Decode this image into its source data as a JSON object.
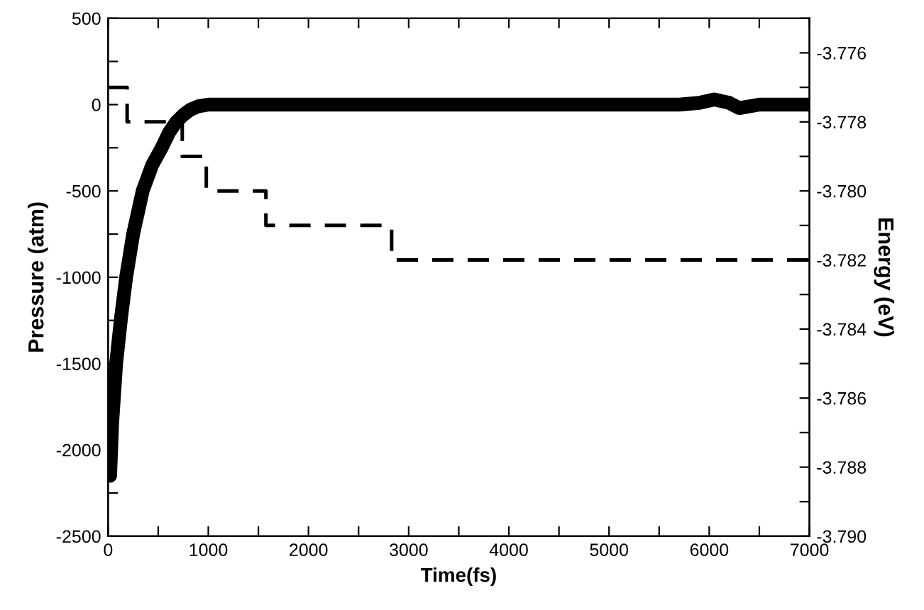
{
  "chart_data": {
    "type": "line",
    "xlabel": "Time(fs)",
    "ylabel": "Pressure (atm)",
    "y2label": "Energy (eV)",
    "xlim": [
      0,
      7000
    ],
    "ylim": [
      -2500,
      500
    ],
    "y2lim": [
      -3.79,
      -3.775
    ],
    "xticks": [
      0,
      {
        "value": 500,
        "label": null
      },
      1000,
      {
        "value": 1500,
        "label": null
      },
      2000,
      {
        "value": 2500,
        "label": null
      },
      3000,
      {
        "value": 3500,
        "label": null
      },
      4000,
      {
        "value": 4500,
        "label": null
      },
      5000,
      {
        "value": 5500,
        "label": null
      },
      6000,
      {
        "value": 6500,
        "label": null
      },
      7000
    ],
    "yticks": [
      -2500,
      {
        "value": -2250,
        "label": null
      },
      -2000,
      {
        "value": -1750,
        "label": null
      },
      -1500,
      {
        "value": -1250,
        "label": null
      },
      -1000,
      {
        "value": -750,
        "label": null
      },
      -500,
      {
        "value": -250,
        "label": null
      },
      0,
      {
        "value": 250,
        "label": null
      },
      500
    ],
    "y2ticks": [
      {
        "value": -3.79,
        "label": "-3.790"
      },
      {
        "value": -3.789,
        "label": null
      },
      {
        "value": -3.788,
        "label": "-3.788"
      },
      {
        "value": -3.787,
        "label": null
      },
      {
        "value": -3.786,
        "label": "-3.786"
      },
      {
        "value": -3.785,
        "label": null
      },
      {
        "value": -3.784,
        "label": "-3.784"
      },
      {
        "value": -3.783,
        "label": null
      },
      {
        "value": -3.782,
        "label": "-3.782"
      },
      {
        "value": -3.781,
        "label": null
      },
      {
        "value": -3.78,
        "label": "-3.780"
      },
      {
        "value": -3.779,
        "label": null
      },
      {
        "value": -3.778,
        "label": "-3.778"
      },
      {
        "value": -3.777,
        "label": null
      },
      {
        "value": -3.776,
        "label": "-3.776"
      },
      {
        "value": -3.775,
        "label": null
      }
    ],
    "grid": false,
    "marker": "none",
    "series": [
      {
        "color": "#000000",
        "line_style": "solid",
        "x": [
          20,
          40,
          80,
          130,
          180,
          250,
          345,
          440,
          535,
          610,
          680,
          750,
          820,
          900,
          1000,
          1500,
          2000,
          3000,
          4000,
          5000,
          5700,
          5900,
          6050,
          6200,
          6300,
          6500,
          7000
        ],
        "values": [
          -2150,
          -1850,
          -1500,
          -1230,
          -1000,
          -750,
          -500,
          -350,
          -250,
          -160,
          -100,
          -60,
          -30,
          -10,
          0,
          0,
          0,
          0,
          0,
          0,
          0,
          10,
          30,
          10,
          -20,
          0,
          0
        ]
      },
      {
        "type": "step",
        "axis": "y2",
        "color": "#000000",
        "line_style": "dashed",
        "x": [
          0,
          190,
          740,
          980,
          1575,
          2830,
          7000
        ],
        "values": [
          -3.777,
          -3.778,
          -3.779,
          -3.78,
          -3.781,
          -3.782,
          -3.782
        ]
      }
    ]
  }
}
